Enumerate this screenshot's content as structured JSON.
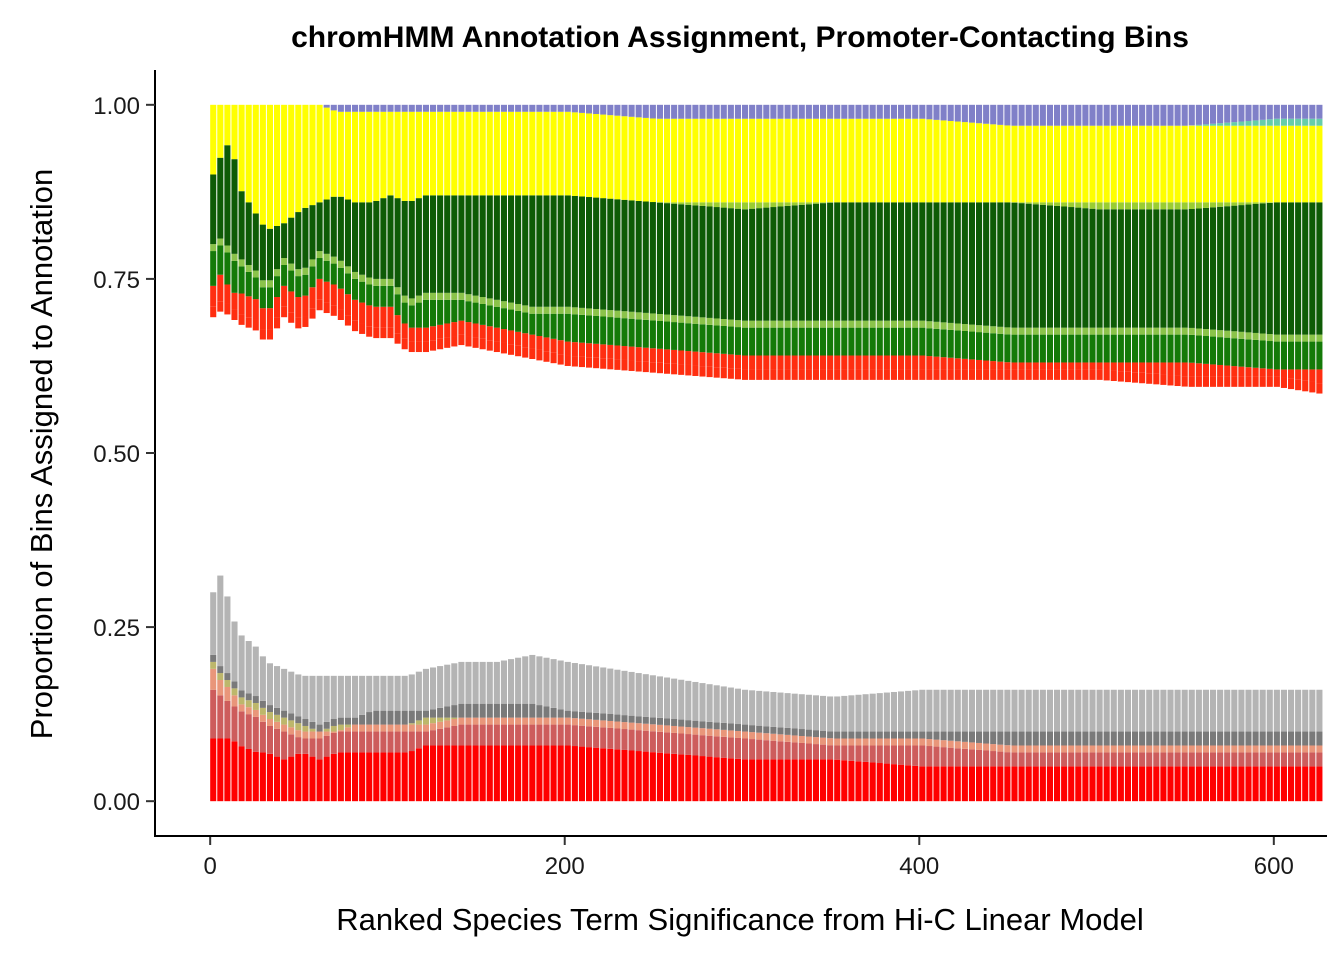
{
  "chart_data": {
    "type": "bar",
    "stacked": true,
    "title": "chromHMM Annotation Assignment, Promoter-Contacting Bins",
    "xlabel": "Ranked Species Term Significance from Hi-C Linear Model",
    "ylabel": "Proportion of Bins Assigned to Annotation",
    "xlim": [
      -30,
      630
    ],
    "ylim": [
      -0.05,
      1.05
    ],
    "x_ticks": [
      0,
      200,
      400,
      600
    ],
    "x_tick_labels": [
      "0",
      "200",
      "400",
      "600"
    ],
    "y_ticks": [
      0,
      0.25,
      0.5,
      0.75,
      1.0
    ],
    "y_tick_labels": [
      "0.00",
      "0.25",
      "0.50",
      "0.75",
      "1.00"
    ],
    "bar_step": 4,
    "grid": false,
    "legend": "none",
    "x_anchors": [
      0,
      5,
      10,
      15,
      25,
      30,
      40,
      50,
      60,
      70,
      80,
      90,
      100,
      110,
      120,
      140,
      160,
      180,
      200,
      250,
      300,
      350,
      400,
      450,
      500,
      550,
      600,
      625
    ],
    "upper_series": [
      {
        "color": "#ff2e10",
        "values": [
          0.71,
          0.72,
          0.71,
          0.7,
          0.69,
          0.67,
          0.71,
          0.69,
          0.72,
          0.71,
          0.69,
          0.68,
          0.68,
          0.66,
          0.66,
          0.67,
          0.66,
          0.65,
          0.64,
          0.63,
          0.62,
          0.62,
          0.62,
          0.62,
          0.62,
          0.61,
          0.61,
          0.6
        ]
      },
      {
        "color": "#147a08",
        "values": [
          0.74,
          0.76,
          0.73,
          0.73,
          0.72,
          0.7,
          0.74,
          0.72,
          0.75,
          0.74,
          0.72,
          0.71,
          0.71,
          0.68,
          0.68,
          0.69,
          0.68,
          0.67,
          0.66,
          0.65,
          0.64,
          0.64,
          0.64,
          0.63,
          0.63,
          0.63,
          0.62,
          0.62
        ]
      },
      {
        "color": "#8bc34a",
        "values": [
          0.79,
          0.8,
          0.78,
          0.77,
          0.75,
          0.73,
          0.77,
          0.75,
          0.78,
          0.77,
          0.75,
          0.74,
          0.74,
          0.71,
          0.72,
          0.72,
          0.71,
          0.7,
          0.7,
          0.69,
          0.68,
          0.68,
          0.68,
          0.67,
          0.67,
          0.67,
          0.66,
          0.66
        ]
      },
      {
        "color": "#0e5b06",
        "values": [
          0.8,
          0.81,
          0.79,
          0.78,
          0.76,
          0.74,
          0.78,
          0.76,
          0.79,
          0.78,
          0.76,
          0.75,
          0.75,
          0.72,
          0.73,
          0.73,
          0.72,
          0.71,
          0.71,
          0.7,
          0.69,
          0.69,
          0.69,
          0.68,
          0.68,
          0.68,
          0.67,
          0.67
        ]
      },
      {
        "color": "#9acd32",
        "values": [
          0.9,
          0.93,
          0.95,
          0.88,
          0.84,
          0.82,
          0.83,
          0.85,
          0.86,
          0.87,
          0.86,
          0.86,
          0.87,
          0.86,
          0.87,
          0.87,
          0.87,
          0.87,
          0.87,
          0.86,
          0.85,
          0.86,
          0.86,
          0.86,
          0.85,
          0.85,
          0.86,
          0.86
        ]
      },
      {
        "color": "#ffff00",
        "values": [
          0.9,
          0.93,
          0.95,
          0.88,
          0.84,
          0.82,
          0.83,
          0.85,
          0.86,
          0.87,
          0.86,
          0.86,
          0.87,
          0.86,
          0.87,
          0.87,
          0.87,
          0.87,
          0.87,
          0.86,
          0.86,
          0.86,
          0.86,
          0.86,
          0.86,
          0.86,
          0.86,
          0.86
        ]
      },
      {
        "color": "#66cdaa",
        "values": [
          1.0,
          1.0,
          1.0,
          1.0,
          1.0,
          1.0,
          1.0,
          1.0,
          1.0,
          0.99,
          0.99,
          0.99,
          0.99,
          0.99,
          0.99,
          0.99,
          0.99,
          0.99,
          0.99,
          0.98,
          0.98,
          0.98,
          0.98,
          0.97,
          0.97,
          0.97,
          0.97,
          0.97
        ]
      },
      {
        "color": "#8080c8",
        "values": [
          1.0,
          1.0,
          1.0,
          1.0,
          1.0,
          1.0,
          1.0,
          1.0,
          1.0,
          0.99,
          0.99,
          0.99,
          0.99,
          0.99,
          0.99,
          0.99,
          0.99,
          0.99,
          0.99,
          0.98,
          0.98,
          0.98,
          0.98,
          0.97,
          0.97,
          0.97,
          0.98,
          0.98
        ]
      }
    ],
    "upper_top": [
      1.0,
      1.0,
      1.0,
      1.0,
      1.0,
      1.0,
      1.0,
      1.0,
      1.0,
      1.0,
      1.0,
      1.0,
      1.0,
      1.0,
      1.0,
      1.0,
      1.0,
      1.0,
      1.0,
      1.0,
      1.0,
      1.0,
      1.0,
      1.0,
      1.0,
      1.0,
      1.0,
      1.0
    ],
    "lower_series": [
      {
        "color": "#ff0000",
        "values": [
          0.09,
          0.09,
          0.09,
          0.08,
          0.07,
          0.07,
          0.06,
          0.07,
          0.06,
          0.07,
          0.07,
          0.07,
          0.07,
          0.07,
          0.08,
          0.08,
          0.08,
          0.08,
          0.08,
          0.07,
          0.06,
          0.06,
          0.05,
          0.05,
          0.05,
          0.05,
          0.05,
          0.05
        ]
      },
      {
        "color": "#cd5c5c",
        "values": [
          0.16,
          0.15,
          0.14,
          0.13,
          0.12,
          0.11,
          0.1,
          0.09,
          0.09,
          0.1,
          0.1,
          0.1,
          0.1,
          0.1,
          0.1,
          0.11,
          0.11,
          0.11,
          0.11,
          0.1,
          0.09,
          0.08,
          0.08,
          0.07,
          0.07,
          0.07,
          0.07,
          0.07
        ]
      },
      {
        "color": "#e9967a",
        "values": [
          0.19,
          0.17,
          0.16,
          0.14,
          0.13,
          0.12,
          0.11,
          0.1,
          0.1,
          0.1,
          0.11,
          0.11,
          0.11,
          0.11,
          0.11,
          0.12,
          0.12,
          0.12,
          0.12,
          0.11,
          0.1,
          0.09,
          0.09,
          0.08,
          0.08,
          0.08,
          0.08,
          0.08
        ]
      },
      {
        "color": "#bdb76b",
        "values": [
          0.2,
          0.18,
          0.17,
          0.15,
          0.14,
          0.13,
          0.12,
          0.11,
          0.1,
          0.11,
          0.11,
          0.11,
          0.11,
          0.11,
          0.12,
          0.12,
          0.12,
          0.12,
          0.12,
          0.11,
          0.1,
          0.09,
          0.09,
          0.08,
          0.08,
          0.08,
          0.08,
          0.08
        ]
      },
      {
        "color": "#7a7a7a",
        "values": [
          0.21,
          0.19,
          0.18,
          0.16,
          0.15,
          0.14,
          0.13,
          0.12,
          0.11,
          0.12,
          0.12,
          0.13,
          0.13,
          0.13,
          0.13,
          0.14,
          0.14,
          0.14,
          0.13,
          0.12,
          0.11,
          0.1,
          0.1,
          0.1,
          0.1,
          0.1,
          0.1,
          0.1
        ]
      },
      {
        "color": "#b4b4b4",
        "values": [
          0.3,
          0.33,
          0.27,
          0.24,
          0.22,
          0.2,
          0.19,
          0.18,
          0.18,
          0.18,
          0.18,
          0.18,
          0.18,
          0.18,
          0.19,
          0.2,
          0.2,
          0.21,
          0.2,
          0.18,
          0.16,
          0.15,
          0.16,
          0.16,
          0.16,
          0.16,
          0.16,
          0.16
        ]
      }
    ]
  }
}
